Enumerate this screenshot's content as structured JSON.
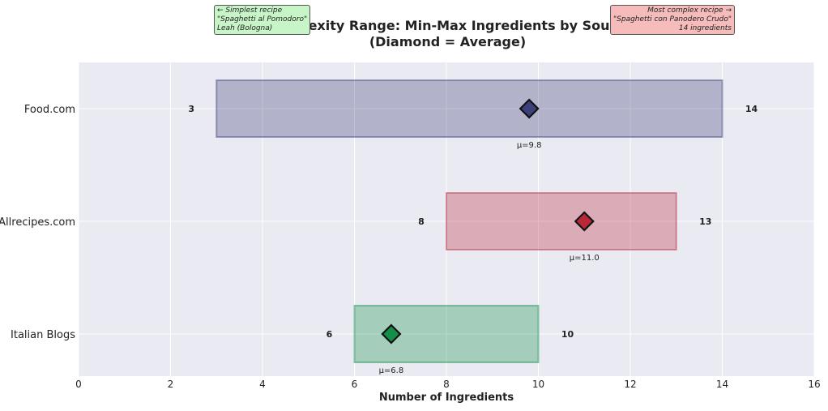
{
  "title": "Complexity Range: Min-Max Ingredients by Source",
  "subtitle": "(Diamond = Average)",
  "annotations": {
    "left": "← Simplest recipe\n\"Spaghetti al Pomodoro\"\nLeah (Bologna)",
    "right": "Most complex recipe →\n\"Spaghetti con Panodero Crudo\"\n14 ingredients"
  },
  "colors": {
    "Food.com": "#3b3f7a",
    "Allrecipes.com": "#b8283a",
    "Italian Blogs": "#138f4a",
    "plot_bg": "#eaeaf2"
  },
  "chart_data": {
    "type": "range-bar",
    "title": "Complexity Range: Min-Max Ingredients by Source",
    "subtitle": "(Diamond = Average)",
    "xlabel": "Number of Ingredients",
    "ylabel": "",
    "xlim": [
      0,
      16
    ],
    "xticks": [
      0,
      2,
      4,
      6,
      8,
      10,
      12,
      14,
      16
    ],
    "grid": true,
    "categories": [
      "Food.com",
      "Allrecipes.com",
      "Italian Blogs"
    ],
    "series": [
      {
        "category": "Food.com",
        "min": 3,
        "max": 14,
        "mean": 9.8,
        "mean_label": "μ=9.8"
      },
      {
        "category": "Allrecipes.com",
        "min": 8,
        "max": 13,
        "mean": 11.0,
        "mean_label": "μ=11.0"
      },
      {
        "category": "Italian Blogs",
        "min": 6,
        "max": 10,
        "mean": 6.8,
        "mean_label": "μ=6.8"
      }
    ]
  }
}
